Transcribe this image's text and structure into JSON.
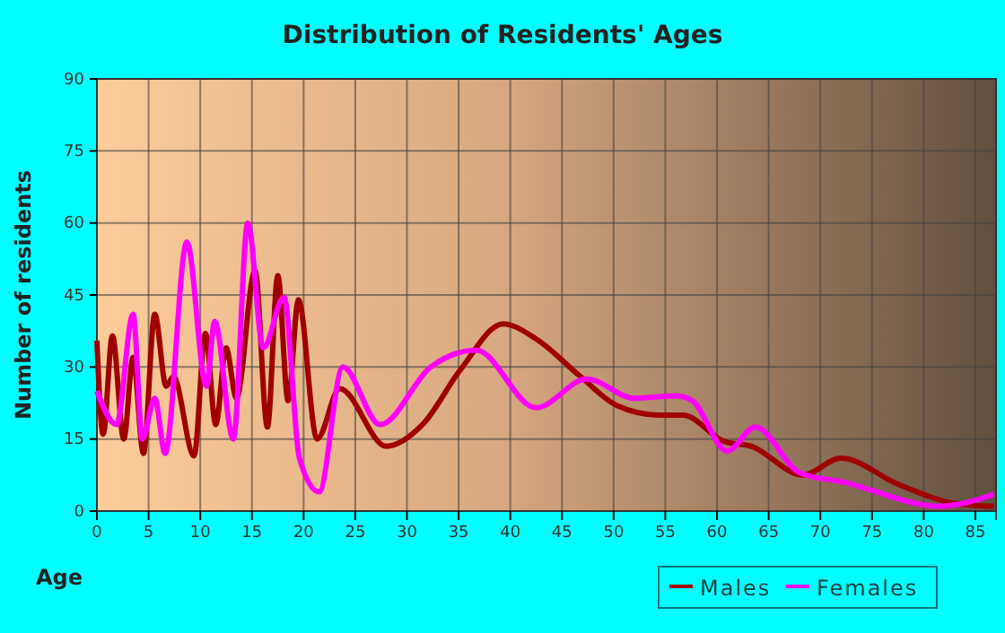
{
  "chart_data": {
    "type": "line",
    "title": "Distribution of Residents' Ages",
    "xlabel": "Age",
    "ylabel": "Number of residents",
    "xlim": [
      0,
      87
    ],
    "xticks": [
      0,
      5,
      10,
      15,
      20,
      25,
      30,
      35,
      40,
      45,
      50,
      55,
      60,
      65,
      70,
      75,
      80,
      85
    ],
    "ylim": [
      0,
      90
    ],
    "yticks": [
      0,
      15,
      30,
      45,
      60,
      75,
      90
    ],
    "grid": true,
    "legend": "bottom right",
    "marker": "none",
    "line_style": "solid",
    "series": [
      {
        "name": "Males",
        "color": "#a00000",
        "x": [
          0,
          0.6,
          1.5,
          2.6,
          3.5,
          4.5,
          5.6,
          6.7,
          7.4,
          9.4,
          10.5,
          11.5,
          12.5,
          13.5,
          15.3,
          16.5,
          17.5,
          18.5,
          19.5,
          21.3,
          23.5,
          28,
          31.5,
          35.2,
          39.3,
          42.4,
          46.8,
          50.3,
          54.4,
          56.7,
          60.7,
          63.3,
          68.3,
          72,
          77.6,
          83.3,
          86.8
        ],
        "values": [
          35.5,
          16,
          36.5,
          15,
          32,
          12,
          41,
          26,
          28,
          11.5,
          37,
          18,
          34,
          23.5,
          50,
          17.5,
          49,
          23,
          44,
          15,
          25.5,
          13.5,
          18,
          29.5,
          39,
          36,
          28,
          22,
          20,
          20,
          14.5,
          13.5,
          7.5,
          11,
          5.5,
          1.5,
          1
        ]
      },
      {
        "name": "Females",
        "color": "#ff00ff",
        "x": [
          0,
          1.9,
          3.5,
          4.4,
          5.6,
          6.6,
          8.7,
          10.6,
          11.4,
          13.2,
          14.6,
          16.1,
          18.1,
          19.6,
          21.5,
          23.8,
          27.4,
          32.3,
          36.7,
          42.5,
          47.4,
          52,
          56.1,
          57.6,
          61,
          63.7,
          68,
          72.3,
          81.6,
          86.8
        ],
        "values": [
          25,
          18,
          41,
          15,
          23.5,
          12,
          56,
          26,
          39.5,
          15,
          60,
          34,
          44.5,
          11,
          4,
          30,
          18,
          30,
          33.5,
          21.5,
          27.5,
          23.5,
          24,
          23,
          12.5,
          17.5,
          8,
          6,
          1,
          3.5
        ]
      }
    ]
  }
}
